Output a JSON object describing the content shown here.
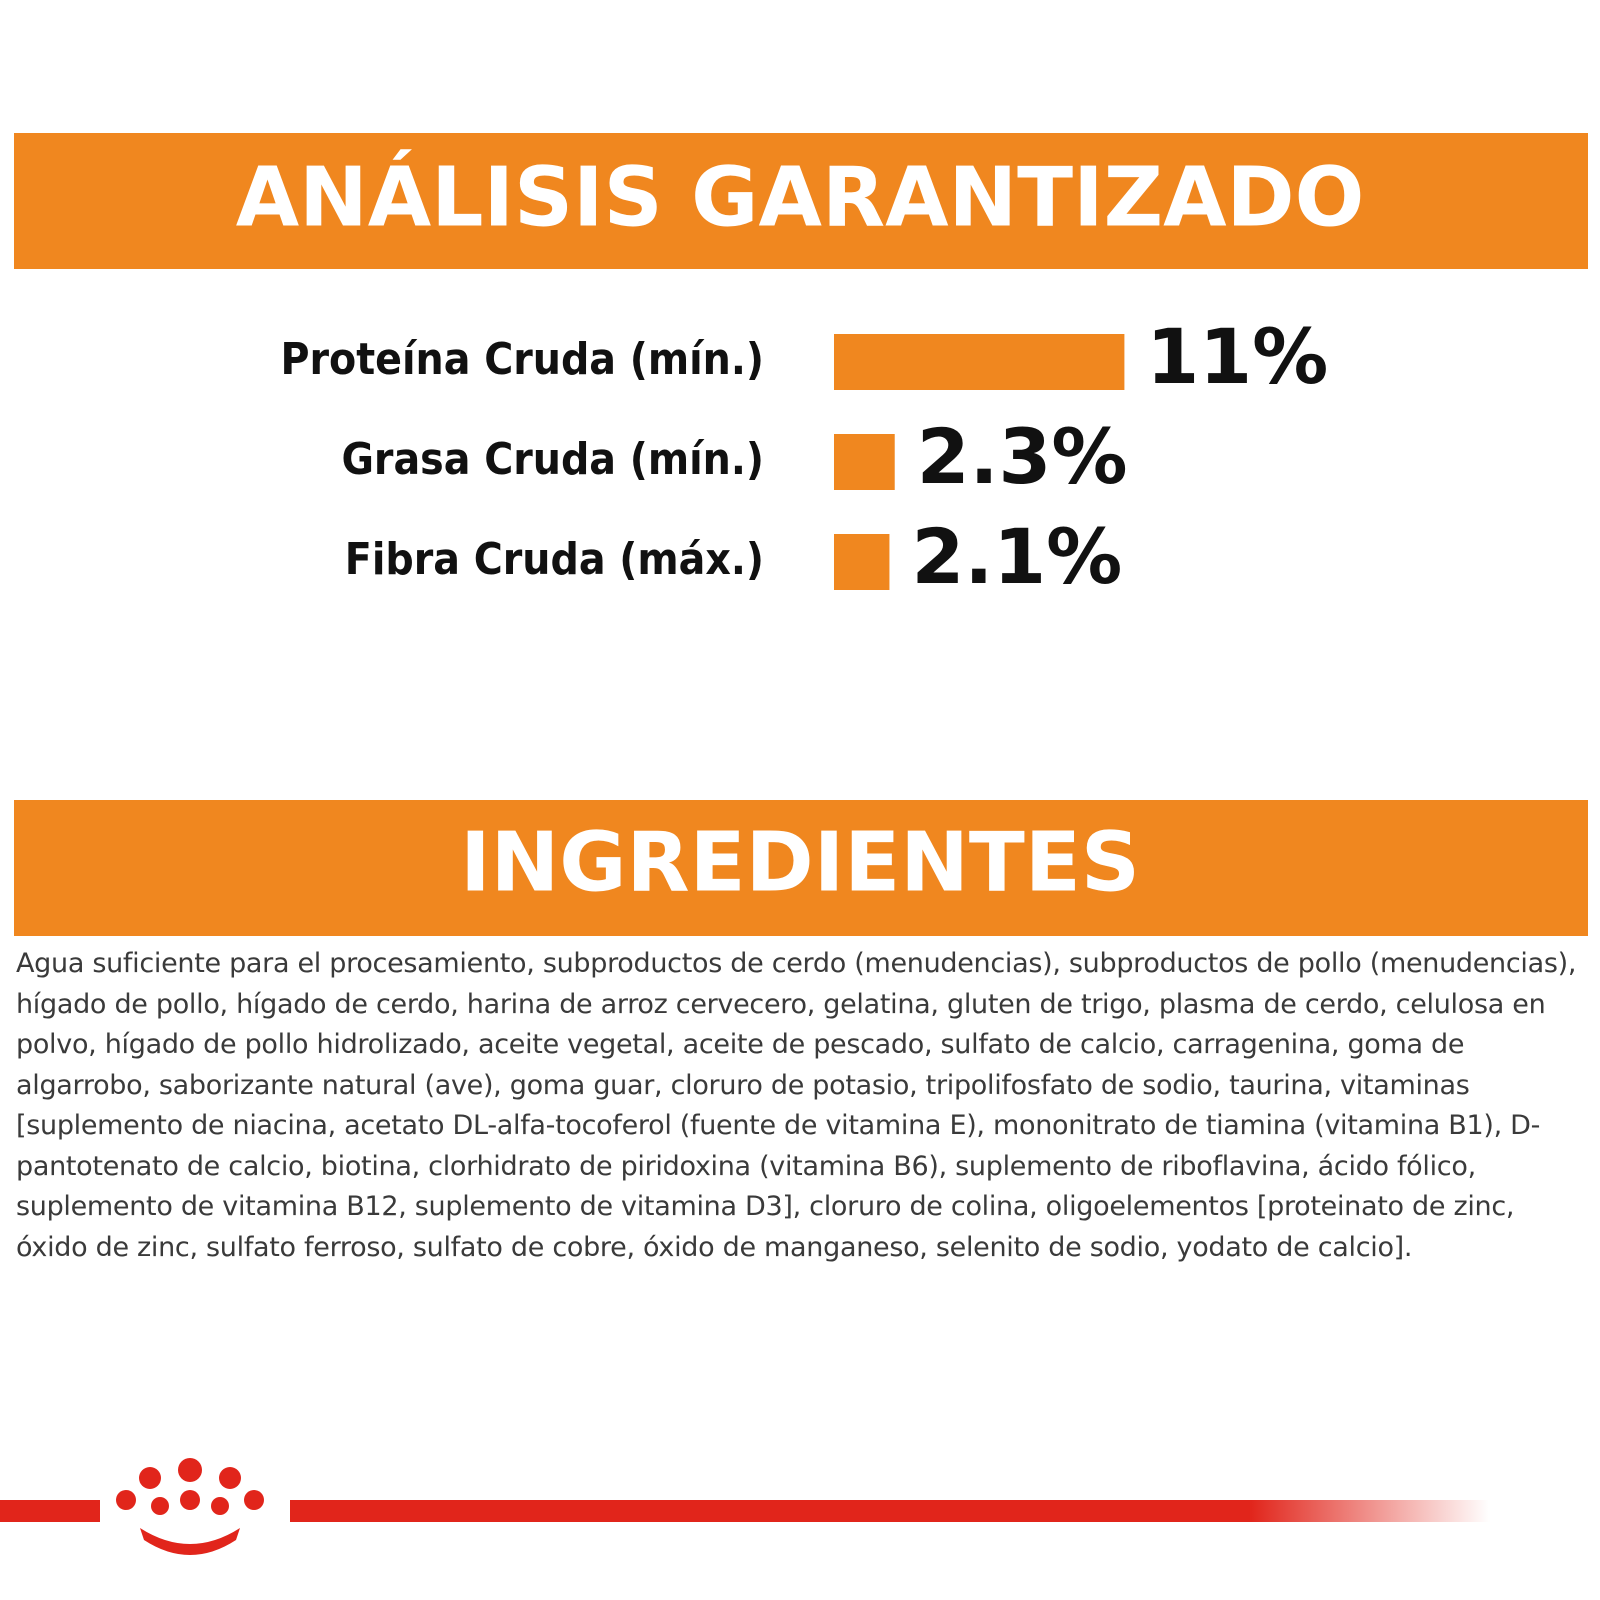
{
  "chart_data": {
    "type": "bar",
    "orientation": "horizontal",
    "title": "ANÁLISIS GARANTIZADO",
    "categories": [
      "Proteína Cruda (mín.)",
      "Grasa Cruda (mín.)",
      "Fibra Cruda (máx.)"
    ],
    "values": [
      11,
      2.3,
      2.1
    ],
    "value_labels": [
      "11%",
      "2.3%",
      "2.1%"
    ],
    "color": "#f0871f"
  },
  "ingredients": {
    "title": "INGREDIENTES",
    "text": "Agua suficiente para el procesamiento, subproductos de cerdo (menudencias), subproductos de pollo (menudencias), hígado de pollo, hígado de cerdo, harina de arroz cervecero, gelatina, gluten de trigo, plasma de cerdo, celulosa en polvo, hígado de pollo hidrolizado, aceite vegetal, aceite de pescado, sulfato de calcio, carragenina, goma de algarrobo, saborizante natural (ave), goma guar, cloruro de potasio, tripolifosfato de sodio, taurina, vitaminas [suplemento de niacina, acetato DL-alfa-tocoferol (fuente de vitamina E), mononitrato de tiamina (vitamina B1), D-pantotenato de calcio, biotina, clorhidrato de piridoxina (vitamina B6), suplemento de riboflavina, ácido fólico, suplemento de vitamina B12, suplemento de vitamina D3], cloruro de colina, oligoelementos [proteinato de zinc, óxido de zinc, sulfato ferroso, sulfato de cobre, óxido de manganeso, selenito de sodio, yodato de calcio]."
  }
}
